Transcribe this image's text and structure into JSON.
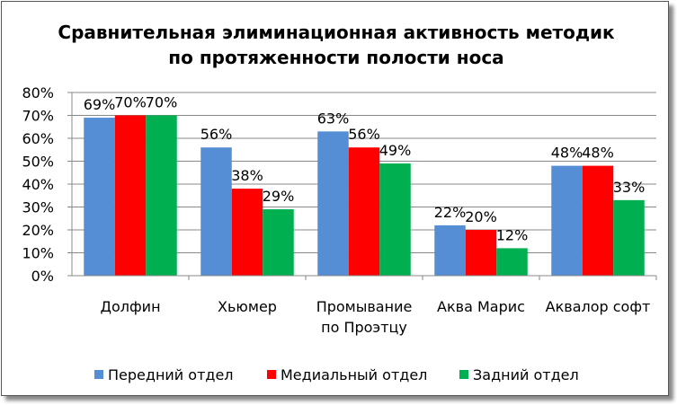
{
  "chart_data": {
    "type": "bar",
    "title_lines": [
      "Сравнительная элиминационная активность методик",
      "по протяженности полости носа"
    ],
    "categories": [
      [
        "Долфин"
      ],
      [
        "Хьюмер"
      ],
      [
        "Промывание",
        "по Проэтцу"
      ],
      [
        "Аква Марис"
      ],
      [
        "Аквалор софт"
      ]
    ],
    "series": [
      {
        "name": "Передний отдел",
        "color": "#558ED5",
        "values": [
          69,
          56,
          63,
          22,
          48
        ]
      },
      {
        "name": "Медиальный отдел",
        "color": "#FF0000",
        "values": [
          70,
          38,
          56,
          20,
          48
        ]
      },
      {
        "name": "Задний отдел",
        "color": "#00B050",
        "values": [
          70,
          29,
          49,
          12,
          33
        ]
      }
    ],
    "yticks": [
      "0%",
      "10%",
      "20%",
      "30%",
      "40%",
      "50%",
      "60%",
      "70%",
      "80%"
    ],
    "ylim": [
      0,
      80
    ],
    "grid": true,
    "legend": "bottom",
    "data_labels": true
  }
}
